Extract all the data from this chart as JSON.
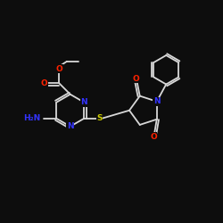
{
  "bg_color": "#0d0d0d",
  "bond_color": "#d8d8d8",
  "N_color": "#3333ff",
  "O_color": "#ff2200",
  "S_color": "#cccc00",
  "bond_lw": 1.3,
  "font_size": 6.5,
  "fig_xlim": [
    0,
    10
  ],
  "fig_ylim": [
    0,
    10
  ]
}
